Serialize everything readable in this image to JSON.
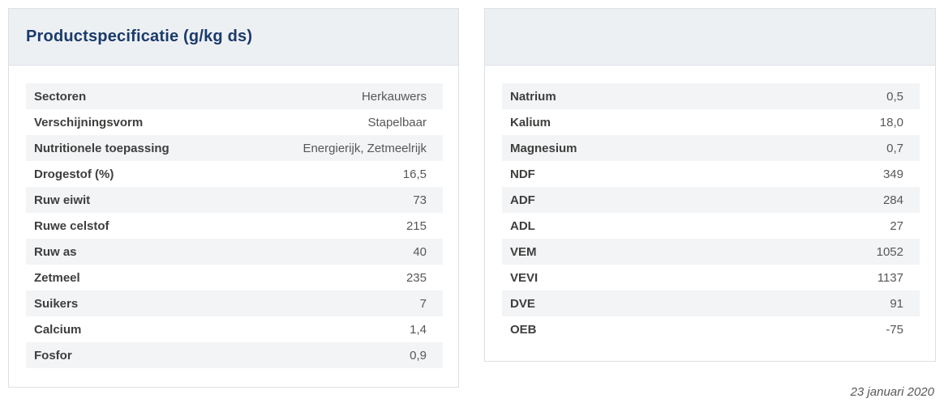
{
  "header": {
    "title": "Productspecificatie (g/kg ds)"
  },
  "tables": {
    "left": {
      "rows": [
        {
          "label": "Sectoren",
          "value": "Herkauwers"
        },
        {
          "label": "Verschijningsvorm",
          "value": "Stapelbaar"
        },
        {
          "label": "Nutritionele toepassing",
          "value": "Energierijk, Zetmeelrijk"
        },
        {
          "label": "Drogestof (%)",
          "value": "16,5"
        },
        {
          "label": "Ruw eiwit",
          "value": "73"
        },
        {
          "label": "Ruwe celstof",
          "value": "215"
        },
        {
          "label": "Ruw as",
          "value": "40"
        },
        {
          "label": "Zetmeel",
          "value": "235"
        },
        {
          "label": "Suikers",
          "value": "7"
        },
        {
          "label": "Calcium",
          "value": "1,4"
        },
        {
          "label": "Fosfor",
          "value": "0,9"
        }
      ]
    },
    "right": {
      "rows": [
        {
          "label": "Natrium",
          "value": "0,5"
        },
        {
          "label": "Kalium",
          "value": "18,0"
        },
        {
          "label": "Magnesium",
          "value": "0,7"
        },
        {
          "label": "NDF",
          "value": "349"
        },
        {
          "label": "ADF",
          "value": "284"
        },
        {
          "label": "ADL",
          "value": "27"
        },
        {
          "label": "VEM",
          "value": "1052"
        },
        {
          "label": "VEVI",
          "value": "1137"
        },
        {
          "label": "DVE",
          "value": "91"
        },
        {
          "label": "OEB",
          "value": "-75"
        }
      ]
    }
  },
  "footer": {
    "date": "23 januari 2020"
  },
  "colors": {
    "title_navy": "#1a3a6c",
    "stripe_gray": "#f2f4f6",
    "header_bg": "#edf0f3",
    "card_border": "#dce0e4",
    "label_text": "#3e3e3d",
    "value_text": "#575756"
  }
}
